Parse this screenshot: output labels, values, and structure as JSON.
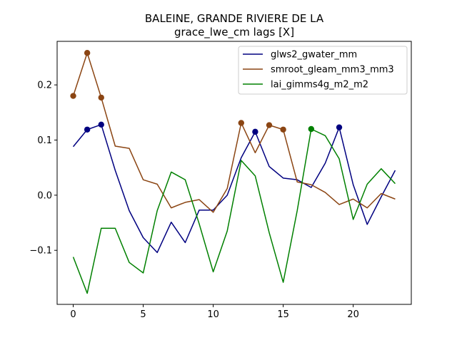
{
  "chart_data": {
    "type": "line",
    "title_lines": [
      "BALEINE, GRANDE RIVIERE DE LA",
      "grace_lwe_cm lags [X]"
    ],
    "xlabel": "",
    "ylabel": "",
    "xlim": [
      -1.15,
      24.15
    ],
    "ylim": [
      -0.198,
      0.279
    ],
    "xticks": [
      0,
      5,
      10,
      15,
      20
    ],
    "xtick_labels": [
      "0",
      "5",
      "10",
      "15",
      "20"
    ],
    "yticks": [
      -0.1,
      0.0,
      0.1,
      0.2
    ],
    "ytick_labels": [
      "−0.1",
      "0.0",
      "0.1",
      "0.2"
    ],
    "grid": false,
    "legend_position": "top-right",
    "x": [
      0,
      1,
      2,
      3,
      4,
      5,
      6,
      7,
      8,
      9,
      10,
      11,
      12,
      13,
      14,
      15,
      16,
      17,
      18,
      19,
      20,
      21,
      22,
      23
    ],
    "series": [
      {
        "name": "glws2_gwater_mm",
        "color": "#000080",
        "values": [
          0.088,
          0.119,
          0.128,
          0.045,
          -0.028,
          -0.077,
          -0.104,
          -0.049,
          -0.086,
          -0.027,
          -0.027,
          0.0,
          0.068,
          0.115,
          0.052,
          0.031,
          0.028,
          0.014,
          0.058,
          0.123,
          0.019,
          -0.053,
          -0.003,
          0.045
        ],
        "highlight_x": [
          1,
          2,
          13,
          19
        ]
      },
      {
        "name": "smroot_gleam_mm3_mm3",
        "color": "#8B4513",
        "values": [
          0.18,
          0.258,
          0.177,
          0.089,
          0.085,
          0.028,
          0.02,
          -0.023,
          -0.013,
          -0.008,
          -0.031,
          0.012,
          0.131,
          0.077,
          0.127,
          0.119,
          0.024,
          0.019,
          0.005,
          -0.017,
          -0.007,
          -0.023,
          0.003,
          -0.007
        ],
        "highlight_x": [
          0,
          1,
          2,
          12,
          14,
          15
        ]
      },
      {
        "name": "lai_gimms4g_m2_m2",
        "color": "#008000",
        "values": [
          -0.112,
          -0.178,
          -0.06,
          -0.06,
          -0.122,
          -0.141,
          -0.028,
          0.042,
          0.028,
          -0.052,
          -0.139,
          -0.065,
          0.063,
          0.035,
          -0.068,
          -0.158,
          -0.028,
          0.12,
          0.108,
          0.066,
          -0.044,
          0.02,
          0.048,
          0.021
        ],
        "highlight_x": [
          17
        ]
      }
    ]
  }
}
